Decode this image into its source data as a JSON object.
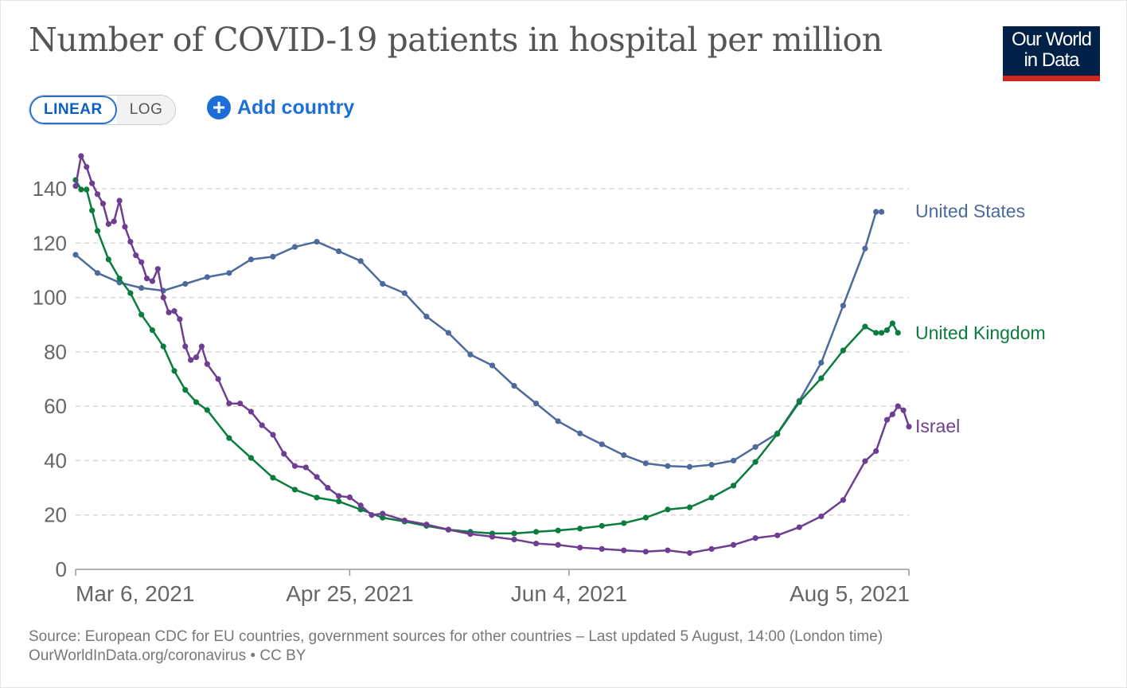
{
  "title": "Number of COVID-19 patients in hospital per million",
  "logo": {
    "line1": "Our World",
    "line2": "in Data",
    "bg": "#002147",
    "accent": "#ce261e"
  },
  "controls": {
    "linear_label": "LINEAR",
    "log_label": "LOG",
    "selected": "LINEAR",
    "add_country_label": "Add country",
    "add_icon": "plus-circle-icon"
  },
  "footer": {
    "source": "Source: European CDC for EU countries, government sources for other countries – Last updated 5 August, 14:00 (London time)",
    "credit": "OurWorldInData.org/coronavirus • CC BY"
  },
  "chart_data": {
    "type": "line",
    "title": "Number of COVID-19 patients in hospital per million",
    "xlabel": "",
    "ylabel": "",
    "xlim": [
      "2021-03-06",
      "2021-08-05"
    ],
    "ylim": [
      0,
      140
    ],
    "yticks": [
      0,
      20,
      40,
      60,
      80,
      100,
      120,
      140
    ],
    "xticks": [
      {
        "date": "2021-03-06",
        "label": "Mar 6, 2021"
      },
      {
        "date": "2021-04-25",
        "label": "Apr 25, 2021"
      },
      {
        "date": "2021-06-04",
        "label": "Jun 4, 2021"
      },
      {
        "date": "2021-08-05",
        "label": "Aug 5, 2021"
      }
    ],
    "grid": "horizontal dashed",
    "legend": "right (inline labels at line ends)",
    "series": [
      {
        "name": "United States",
        "color": "#4c6a9c",
        "points": [
          [
            "2021-03-06",
            115.7
          ],
          [
            "2021-03-10",
            109
          ],
          [
            "2021-03-14",
            105.5
          ],
          [
            "2021-03-18",
            103.5
          ],
          [
            "2021-03-22",
            102.5
          ],
          [
            "2021-03-26",
            105
          ],
          [
            "2021-03-30",
            107.5
          ],
          [
            "2021-04-03",
            109
          ],
          [
            "2021-04-07",
            114
          ],
          [
            "2021-04-11",
            115
          ],
          [
            "2021-04-15",
            118.6
          ],
          [
            "2021-04-19",
            120.5
          ],
          [
            "2021-04-23",
            117
          ],
          [
            "2021-04-27",
            113.4
          ],
          [
            "2021-05-01",
            105
          ],
          [
            "2021-05-05",
            101.6
          ],
          [
            "2021-05-09",
            93
          ],
          [
            "2021-05-13",
            87
          ],
          [
            "2021-05-17",
            79
          ],
          [
            "2021-05-21",
            75
          ],
          [
            "2021-05-25",
            67.5
          ],
          [
            "2021-05-29",
            61
          ],
          [
            "2021-06-02",
            54.5
          ],
          [
            "2021-06-06",
            50
          ],
          [
            "2021-06-10",
            46
          ],
          [
            "2021-06-14",
            42
          ],
          [
            "2021-06-18",
            39
          ],
          [
            "2021-06-22",
            38
          ],
          [
            "2021-06-26",
            37.7
          ],
          [
            "2021-06-30",
            38.5
          ],
          [
            "2021-07-04",
            40
          ],
          [
            "2021-07-08",
            45
          ],
          [
            "2021-07-12",
            50
          ],
          [
            "2021-07-16",
            62
          ],
          [
            "2021-07-20",
            76
          ],
          [
            "2021-07-24",
            97
          ],
          [
            "2021-07-28",
            118
          ],
          [
            "2021-07-30",
            131.5
          ],
          [
            "2021-07-31",
            131.5
          ]
        ]
      },
      {
        "name": "United Kingdom",
        "color": "#0a7d3e",
        "points": [
          [
            "2021-03-06",
            143.2
          ],
          [
            "2021-03-07",
            139.7
          ],
          [
            "2021-03-08",
            139.7
          ],
          [
            "2021-03-09",
            132
          ],
          [
            "2021-03-10",
            124.5
          ],
          [
            "2021-03-12",
            114
          ],
          [
            "2021-03-14",
            107
          ],
          [
            "2021-03-16",
            101.6
          ],
          [
            "2021-03-18",
            93.7
          ],
          [
            "2021-03-20",
            88
          ],
          [
            "2021-03-22",
            82
          ],
          [
            "2021-03-24",
            73
          ],
          [
            "2021-03-26",
            66
          ],
          [
            "2021-03-28",
            61.5
          ],
          [
            "2021-03-30",
            58.6
          ],
          [
            "2021-04-03",
            48.3
          ],
          [
            "2021-04-07",
            41
          ],
          [
            "2021-04-11",
            33.7
          ],
          [
            "2021-04-15",
            29.3
          ],
          [
            "2021-04-19",
            26.4
          ],
          [
            "2021-04-23",
            25
          ],
          [
            "2021-04-27",
            22
          ],
          [
            "2021-05-01",
            19
          ],
          [
            "2021-05-05",
            17.6
          ],
          [
            "2021-05-09",
            16
          ],
          [
            "2021-05-13",
            14.6
          ],
          [
            "2021-05-17",
            13.8
          ],
          [
            "2021-05-21",
            13.2
          ],
          [
            "2021-05-25",
            13.2
          ],
          [
            "2021-05-29",
            13.8
          ],
          [
            "2021-06-02",
            14.3
          ],
          [
            "2021-06-06",
            15
          ],
          [
            "2021-06-10",
            16
          ],
          [
            "2021-06-14",
            17
          ],
          [
            "2021-06-18",
            19
          ],
          [
            "2021-06-22",
            22
          ],
          [
            "2021-06-26",
            22.8
          ],
          [
            "2021-06-30",
            26.4
          ],
          [
            "2021-07-04",
            30.8
          ],
          [
            "2021-07-08",
            39.5
          ],
          [
            "2021-07-12",
            49.8
          ],
          [
            "2021-07-16",
            61.5
          ],
          [
            "2021-07-20",
            70.3
          ],
          [
            "2021-07-24",
            80.5
          ],
          [
            "2021-07-28",
            89.3
          ],
          [
            "2021-07-30",
            87
          ],
          [
            "2021-07-31",
            87
          ],
          [
            "2021-08-01",
            88
          ],
          [
            "2021-08-02",
            90.5
          ],
          [
            "2021-08-03",
            87
          ]
        ]
      },
      {
        "name": "Israel",
        "color": "#6d3e91",
        "points": [
          [
            "2021-03-06",
            141
          ],
          [
            "2021-03-07",
            152
          ],
          [
            "2021-03-08",
            148
          ],
          [
            "2021-03-09",
            142
          ],
          [
            "2021-03-10",
            138
          ],
          [
            "2021-03-11",
            134.5
          ],
          [
            "2021-03-12",
            127
          ],
          [
            "2021-03-13",
            128
          ],
          [
            "2021-03-14",
            135.6
          ],
          [
            "2021-03-15",
            126
          ],
          [
            "2021-03-16",
            120.5
          ],
          [
            "2021-03-17",
            115.5
          ],
          [
            "2021-03-18",
            113
          ],
          [
            "2021-03-19",
            107
          ],
          [
            "2021-03-20",
            106
          ],
          [
            "2021-03-21",
            110.5
          ],
          [
            "2021-03-22",
            100
          ],
          [
            "2021-03-23",
            94.5
          ],
          [
            "2021-03-24",
            95
          ],
          [
            "2021-03-25",
            92
          ],
          [
            "2021-03-26",
            82
          ],
          [
            "2021-03-27",
            77
          ],
          [
            "2021-03-28",
            78
          ],
          [
            "2021-03-29",
            82
          ],
          [
            "2021-03-30",
            75.5
          ],
          [
            "2021-04-01",
            70
          ],
          [
            "2021-04-03",
            61
          ],
          [
            "2021-04-05",
            61
          ],
          [
            "2021-04-07",
            58
          ],
          [
            "2021-04-09",
            53
          ],
          [
            "2021-04-11",
            49.5
          ],
          [
            "2021-04-13",
            42.5
          ],
          [
            "2021-04-15",
            38
          ],
          [
            "2021-04-17",
            37.5
          ],
          [
            "2021-04-19",
            34
          ],
          [
            "2021-04-21",
            30
          ],
          [
            "2021-04-23",
            27
          ],
          [
            "2021-04-25",
            26.5
          ],
          [
            "2021-04-27",
            23.5
          ],
          [
            "2021-04-29",
            20
          ],
          [
            "2021-05-01",
            20.5
          ],
          [
            "2021-05-05",
            18
          ],
          [
            "2021-05-09",
            16.5
          ],
          [
            "2021-05-13",
            14.6
          ],
          [
            "2021-05-17",
            13
          ],
          [
            "2021-05-21",
            12
          ],
          [
            "2021-05-25",
            11
          ],
          [
            "2021-05-29",
            9.5
          ],
          [
            "2021-06-02",
            9
          ],
          [
            "2021-06-06",
            8
          ],
          [
            "2021-06-10",
            7.5
          ],
          [
            "2021-06-14",
            7
          ],
          [
            "2021-06-18",
            6.5
          ],
          [
            "2021-06-22",
            7
          ],
          [
            "2021-06-26",
            6
          ],
          [
            "2021-06-30",
            7.5
          ],
          [
            "2021-07-04",
            9
          ],
          [
            "2021-07-08",
            11.5
          ],
          [
            "2021-07-12",
            12.5
          ],
          [
            "2021-07-16",
            15.5
          ],
          [
            "2021-07-20",
            19.5
          ],
          [
            "2021-07-24",
            25.5
          ],
          [
            "2021-07-28",
            39.8
          ],
          [
            "2021-07-30",
            43.5
          ],
          [
            "2021-08-01",
            55
          ],
          [
            "2021-08-02",
            57
          ],
          [
            "2021-08-03",
            60
          ],
          [
            "2021-08-04",
            58.5
          ],
          [
            "2021-08-05",
            52.5
          ]
        ]
      }
    ]
  }
}
